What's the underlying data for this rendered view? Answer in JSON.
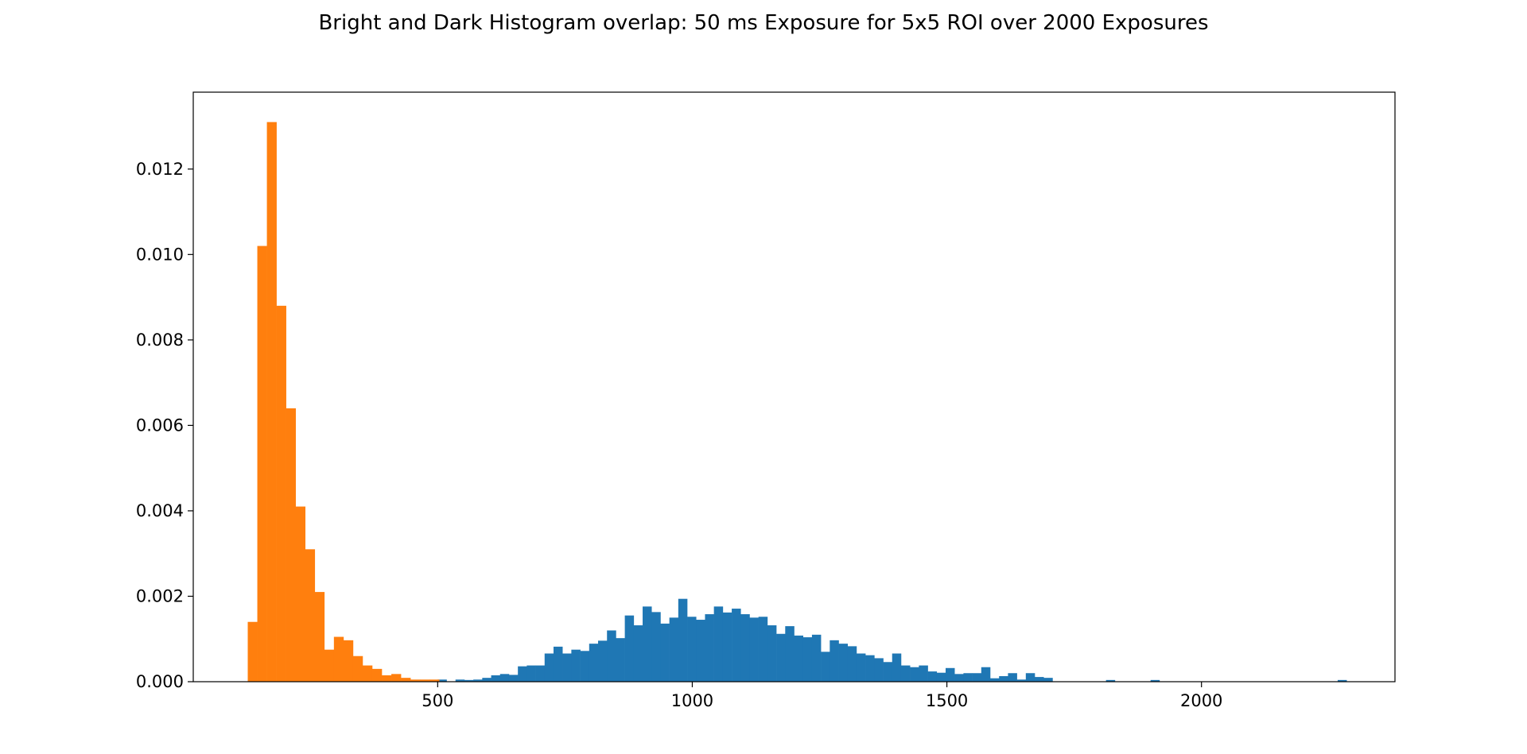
{
  "chart_data": {
    "type": "bar",
    "title": "Bright and Dark Histogram overlap: 50 ms Exposure for 5x5 ROI over 2000 Exposures",
    "xlabel": "",
    "ylabel": "",
    "xlim": [
      20,
      2380
    ],
    "ylim": [
      0,
      0.0138
    ],
    "grid": false,
    "x_ticks": [
      500,
      1000,
      1500,
      2000
    ],
    "y_ticks": [
      0.0,
      0.002,
      0.004,
      0.006,
      0.008,
      0.01,
      0.012
    ],
    "x_tick_labels": [
      "500",
      "1000",
      "1500",
      "2000"
    ],
    "y_tick_labels": [
      "0.000",
      "0.002",
      "0.004",
      "0.006",
      "0.008",
      "0.010",
      "0.012"
    ],
    "series": [
      {
        "color": "#1f77b4",
        "bin_start": 465,
        "bin_width": 17.5,
        "values": [
          0,
          0,
          5e-05,
          0,
          5e-05,
          4e-05,
          5e-05,
          9e-05,
          0.00015,
          0.00018,
          0.00016,
          0.00036,
          0.00038,
          0.00038,
          0.00066,
          0.00082,
          0.00066,
          0.00075,
          0.00072,
          0.00089,
          0.00096,
          0.0012,
          0.00102,
          0.00155,
          0.00132,
          0.00176,
          0.00163,
          0.00136,
          0.0015,
          0.00194,
          0.00152,
          0.00145,
          0.00158,
          0.00176,
          0.00162,
          0.00171,
          0.00158,
          0.0015,
          0.00152,
          0.00132,
          0.00112,
          0.0013,
          0.00108,
          0.00104,
          0.0011,
          0.0007,
          0.00097,
          0.00089,
          0.00083,
          0.00066,
          0.00062,
          0.00055,
          0.00046,
          0.00066,
          0.00038,
          0.00034,
          0.00038,
          0.00024,
          0.00021,
          0.00032,
          0.00018,
          0.0002,
          0.0002,
          0.00034,
          8e-05,
          0.00013,
          0.0002,
          5e-05,
          0.0002,
          0.00011,
          9e-05,
          0,
          0,
          0,
          0,
          0,
          0,
          4e-05,
          0,
          0,
          0,
          0,
          4e-05,
          0,
          0,
          0,
          0,
          0,
          0,
          0,
          0,
          0,
          0,
          0,
          0,
          0,
          0,
          0,
          0,
          0,
          0,
          0,
          0,
          4e-05
        ],
        "name": ""
      },
      {
        "color": "#ff7f0e",
        "bin_start": 127,
        "bin_width": 18.8,
        "values": [
          0.0014,
          0.0102,
          0.0131,
          0.0088,
          0.0064,
          0.0041,
          0.0031,
          0.0021,
          0.00075,
          0.00105,
          0.00097,
          0.0006,
          0.00038,
          0.0003,
          0.00015,
          0.00018,
          9e-05,
          5e-05,
          5e-05,
          5e-05
        ],
        "name": ""
      }
    ]
  }
}
